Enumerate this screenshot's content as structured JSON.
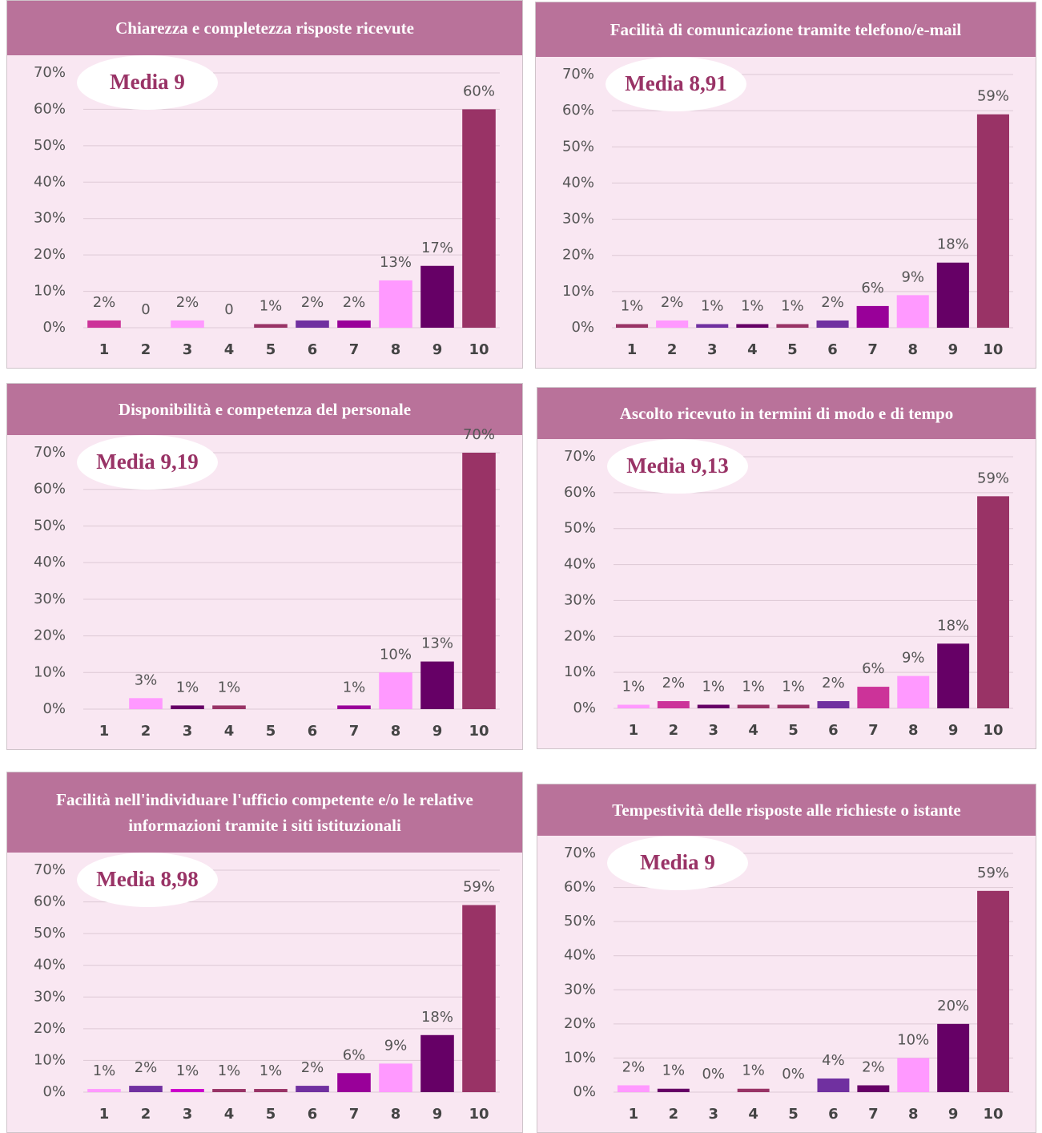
{
  "chart_data": [
    {
      "type": "bar",
      "title": "Chiarezza e completezza risposte ricevute",
      "annotation": "Media 9",
      "categories": [
        "1",
        "2",
        "3",
        "4",
        "5",
        "6",
        "7",
        "8",
        "9",
        "10"
      ],
      "values": [
        2,
        0,
        2,
        0,
        1,
        2,
        2,
        13,
        17,
        60
      ],
      "value_labels": [
        "2%",
        "0",
        "2%",
        "0",
        "1%",
        "2%",
        "2%",
        "13%",
        "17%",
        "60%"
      ],
      "colors": [
        "#cc3399",
        "#cc3399",
        "#ff99ff",
        "#993366",
        "#993366",
        "#7030a0",
        "#990099",
        "#ff99ff",
        "#660066",
        "#993366"
      ],
      "ylim": [
        0,
        70
      ],
      "yticks": [
        {
          "value": 0,
          "label": "0%"
        },
        {
          "value": 10,
          "label": "10%"
        },
        {
          "value": 20,
          "label": "20%"
        },
        {
          "value": 30,
          "label": "30%"
        },
        {
          "value": 40,
          "label": "40%"
        },
        {
          "value": 50,
          "label": "50%"
        },
        {
          "value": 60,
          "label": "60%"
        },
        {
          "value": 70,
          "label": "70%"
        }
      ],
      "grid": true
    },
    {
      "type": "bar",
      "title": "Facilità di comunicazione tramite telefono/e-mail",
      "annotation": "Media 8,91",
      "categories": [
        "1",
        "2",
        "3",
        "4",
        "5",
        "6",
        "7",
        "8",
        "9",
        "10"
      ],
      "values": [
        1,
        2,
        1,
        1,
        1,
        2,
        6,
        9,
        18,
        59
      ],
      "value_labels": [
        "1%",
        "2%",
        "1%",
        "1%",
        "1%",
        "2%",
        "6%",
        "9%",
        "18%",
        "59%"
      ],
      "colors": [
        "#993366",
        "#ff99ff",
        "#7030a0",
        "#660066",
        "#993366",
        "#7030a0",
        "#990099",
        "#ff99ff",
        "#660066",
        "#993366"
      ],
      "ylim": [
        0,
        70
      ],
      "yticks": [
        {
          "value": 0,
          "label": "0%"
        },
        {
          "value": 10,
          "label": "10%"
        },
        {
          "value": 20,
          "label": "20%"
        },
        {
          "value": 30,
          "label": "30%"
        },
        {
          "value": 40,
          "label": "40%"
        },
        {
          "value": 50,
          "label": "50%"
        },
        {
          "value": 60,
          "label": "60%"
        },
        {
          "value": 70,
          "label": "70%"
        }
      ],
      "grid": true
    },
    {
      "type": "bar",
      "title": "Disponibilità e competenza del personale",
      "annotation": "Media 9,19",
      "categories": [
        "1",
        "2",
        "3",
        "4",
        "5",
        "6",
        "7",
        "8",
        "9",
        "10"
      ],
      "values": [
        null,
        3,
        1,
        1,
        null,
        null,
        1,
        10,
        13,
        70
      ],
      "value_labels": [
        null,
        "3%",
        "1%",
        "1%",
        null,
        null,
        "1%",
        "10%",
        "13%",
        "70%"
      ],
      "colors": [
        "#ff99ff",
        "#ff99ff",
        "#660066",
        "#993366",
        "#993366",
        "#7030a0",
        "#990099",
        "#ff99ff",
        "#660066",
        "#993366"
      ],
      "ylim": [
        0,
        70
      ],
      "yticks": [
        {
          "value": 0,
          "label": "0%"
        },
        {
          "value": 10,
          "label": "10%"
        },
        {
          "value": 20,
          "label": "20%"
        },
        {
          "value": 30,
          "label": "30%"
        },
        {
          "value": 40,
          "label": "40%"
        },
        {
          "value": 50,
          "label": "50%"
        },
        {
          "value": 60,
          "label": "60%"
        },
        {
          "value": 70,
          "label": "70%"
        }
      ],
      "grid": true
    },
    {
      "type": "bar",
      "title": "Ascolto ricevuto in termini di modo e di tempo",
      "annotation": "Media 9,13",
      "categories": [
        "1",
        "2",
        "3",
        "4",
        "5",
        "6",
        "7",
        "8",
        "9",
        "10"
      ],
      "values": [
        1,
        2,
        1,
        1,
        1,
        2,
        6,
        9,
        18,
        59
      ],
      "value_labels": [
        "1%",
        "2%",
        "1%",
        "1%",
        "1%",
        "2%",
        "6%",
        "9%",
        "18%",
        "59%"
      ],
      "colors": [
        "#ff99ff",
        "#cc3399",
        "#660066",
        "#993366",
        "#993366",
        "#7030a0",
        "#cc3399",
        "#ff99ff",
        "#660066",
        "#993366"
      ],
      "ylim": [
        0,
        70
      ],
      "yticks": [
        {
          "value": 0,
          "label": "0%"
        },
        {
          "value": 10,
          "label": "10%"
        },
        {
          "value": 20,
          "label": "20%"
        },
        {
          "value": 30,
          "label": "30%"
        },
        {
          "value": 40,
          "label": "40%"
        },
        {
          "value": 50,
          "label": "50%"
        },
        {
          "value": 60,
          "label": "60%"
        },
        {
          "value": 70,
          "label": "70%"
        }
      ],
      "grid": true
    },
    {
      "type": "bar",
      "title": "Facilità nell'individuare l'ufficio competente e/o le relative informazioni tramite i siti istituzionali",
      "annotation": "Media 8,98",
      "categories": [
        "1",
        "2",
        "3",
        "4",
        "5",
        "6",
        "7",
        "8",
        "9",
        "10"
      ],
      "values": [
        1,
        2,
        1,
        1,
        1,
        2,
        6,
        9,
        18,
        59
      ],
      "value_labels": [
        "1%",
        "2%",
        "1%",
        "1%",
        "1%",
        "2%",
        "6%",
        "9%",
        "18%",
        "59%"
      ],
      "colors": [
        "#ff99ff",
        "#7030a0",
        "#cc00cc",
        "#993366",
        "#993366",
        "#7030a0",
        "#990099",
        "#ff99ff",
        "#660066",
        "#993366"
      ],
      "ylim": [
        0,
        70
      ],
      "yticks": [
        {
          "value": 0,
          "label": "0%"
        },
        {
          "value": 10,
          "label": "10%"
        },
        {
          "value": 20,
          "label": "20%"
        },
        {
          "value": 30,
          "label": "30%"
        },
        {
          "value": 40,
          "label": "40%"
        },
        {
          "value": 50,
          "label": "50%"
        },
        {
          "value": 60,
          "label": "60%"
        },
        {
          "value": 70,
          "label": "70%"
        }
      ],
      "grid": true
    },
    {
      "type": "bar",
      "title": "Tempestività delle risposte alle richieste o istante",
      "annotation": "Media 9",
      "categories": [
        "1",
        "2",
        "3",
        "4",
        "5",
        "6",
        "7",
        "8",
        "9",
        "10"
      ],
      "values": [
        2,
        1,
        0,
        1,
        0,
        4,
        2,
        10,
        20,
        59
      ],
      "value_labels": [
        "2%",
        "1%",
        "0%",
        "1%",
        "0%",
        "4%",
        "2%",
        "10%",
        "20%",
        "59%"
      ],
      "colors": [
        "#ff99ff",
        "#660066",
        "#660066",
        "#993366",
        "#993366",
        "#7030a0",
        "#660066",
        "#ff99ff",
        "#660066",
        "#993366"
      ],
      "ylim": [
        0,
        70
      ],
      "yticks": [
        {
          "value": 0,
          "label": "0%"
        },
        {
          "value": 10,
          "label": "10%"
        },
        {
          "value": 20,
          "label": "20%"
        },
        {
          "value": 30,
          "label": "30%"
        },
        {
          "value": 40,
          "label": "40%"
        },
        {
          "value": 50,
          "label": "50%"
        },
        {
          "value": 60,
          "label": "60%"
        },
        {
          "value": 70,
          "label": "70%"
        }
      ],
      "grid": true
    }
  ]
}
